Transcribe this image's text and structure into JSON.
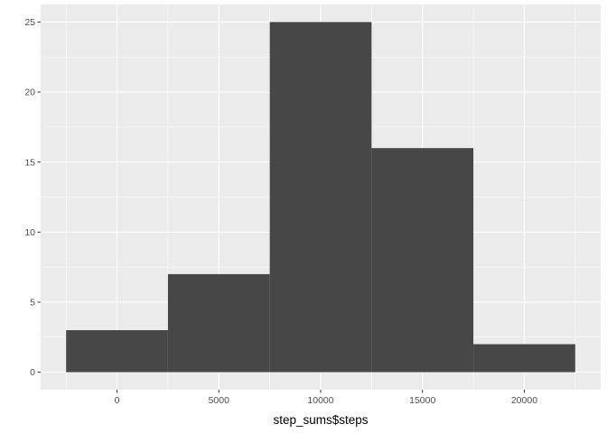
{
  "chart_data": {
    "type": "bar",
    "subtype": "histogram",
    "title": "",
    "xlabel": "step_sums$steps",
    "ylabel": "",
    "bins": [
      {
        "start": -2500,
        "end": 2500,
        "count": 3
      },
      {
        "start": 2500,
        "end": 7500,
        "count": 7
      },
      {
        "start": 7500,
        "end": 12500,
        "count": 25
      },
      {
        "start": 12500,
        "end": 17500,
        "count": 16
      },
      {
        "start": 17500,
        "end": 22500,
        "count": 2
      }
    ],
    "xlim": [
      -3750,
      23750
    ],
    "ylim": [
      -1.25,
      26.25
    ],
    "x_ticks": [
      {
        "value": 0,
        "label": "0"
      },
      {
        "value": 5000,
        "label": "5000"
      },
      {
        "value": 10000,
        "label": "10000"
      },
      {
        "value": 15000,
        "label": "15000"
      },
      {
        "value": 20000,
        "label": "20000"
      }
    ],
    "y_ticks": [
      {
        "value": 0,
        "label": "0"
      },
      {
        "value": 5,
        "label": "5"
      },
      {
        "value": 10,
        "label": "10"
      },
      {
        "value": 15,
        "label": "15"
      },
      {
        "value": 20,
        "label": "20"
      },
      {
        "value": 25,
        "label": "25"
      }
    ],
    "grid": true,
    "legend": "none",
    "colors": {
      "panel_background": "#ebebeb",
      "grid_major": "#ffffff",
      "bar_fill": "#474747",
      "tick_mark": "#333333"
    }
  }
}
